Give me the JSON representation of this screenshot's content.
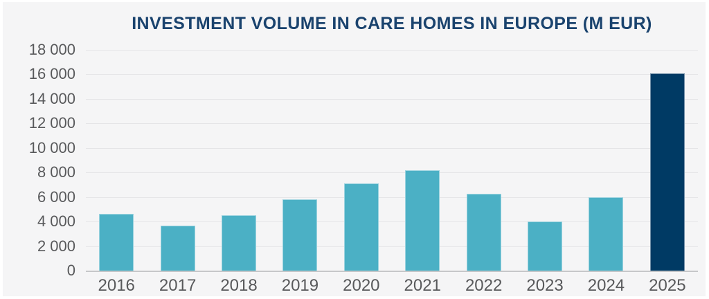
{
  "page": {
    "background_color": "#ffffff",
    "panel_background_color": "#f5f5f6"
  },
  "chart_data": {
    "type": "bar",
    "title": "INVESTMENT VOLUME IN CARE HOMES IN EUROPE (M EUR)",
    "unit": "M EUR",
    "categories": [
      "2016",
      "2017",
      "2018",
      "2019",
      "2020",
      "2021",
      "2022",
      "2023",
      "2024",
      "2025"
    ],
    "values": [
      4650,
      3650,
      4500,
      5800,
      7100,
      8200,
      6250,
      4000,
      6000,
      16100
    ],
    "xlabel": "",
    "ylabel": "",
    "ylim": [
      0,
      18000
    ],
    "ytick_step": 2000,
    "yticks": [
      {
        "value": 18000,
        "label": "18 000"
      },
      {
        "value": 16000,
        "label": "16 000"
      },
      {
        "value": 14000,
        "label": "14 000"
      },
      {
        "value": 12000,
        "label": "12 000"
      },
      {
        "value": 10000,
        "label": "10 000"
      },
      {
        "value": 8000,
        "label": "8 000"
      },
      {
        "value": 6000,
        "label": "6 000"
      },
      {
        "value": 4000,
        "label": "4 000"
      },
      {
        "value": 2000,
        "label": "2 000"
      },
      {
        "value": 0,
        "label": "0"
      }
    ],
    "grid": true,
    "legend": false,
    "colors": {
      "bar_default": "#4bb0c5",
      "bar_highlight": "#003a64",
      "title": "#1a436e",
      "axis_labels": "#58595b",
      "gridline": "#e5e5e7",
      "axis_line": "#c6c7c9"
    },
    "highlight_index": 9
  }
}
